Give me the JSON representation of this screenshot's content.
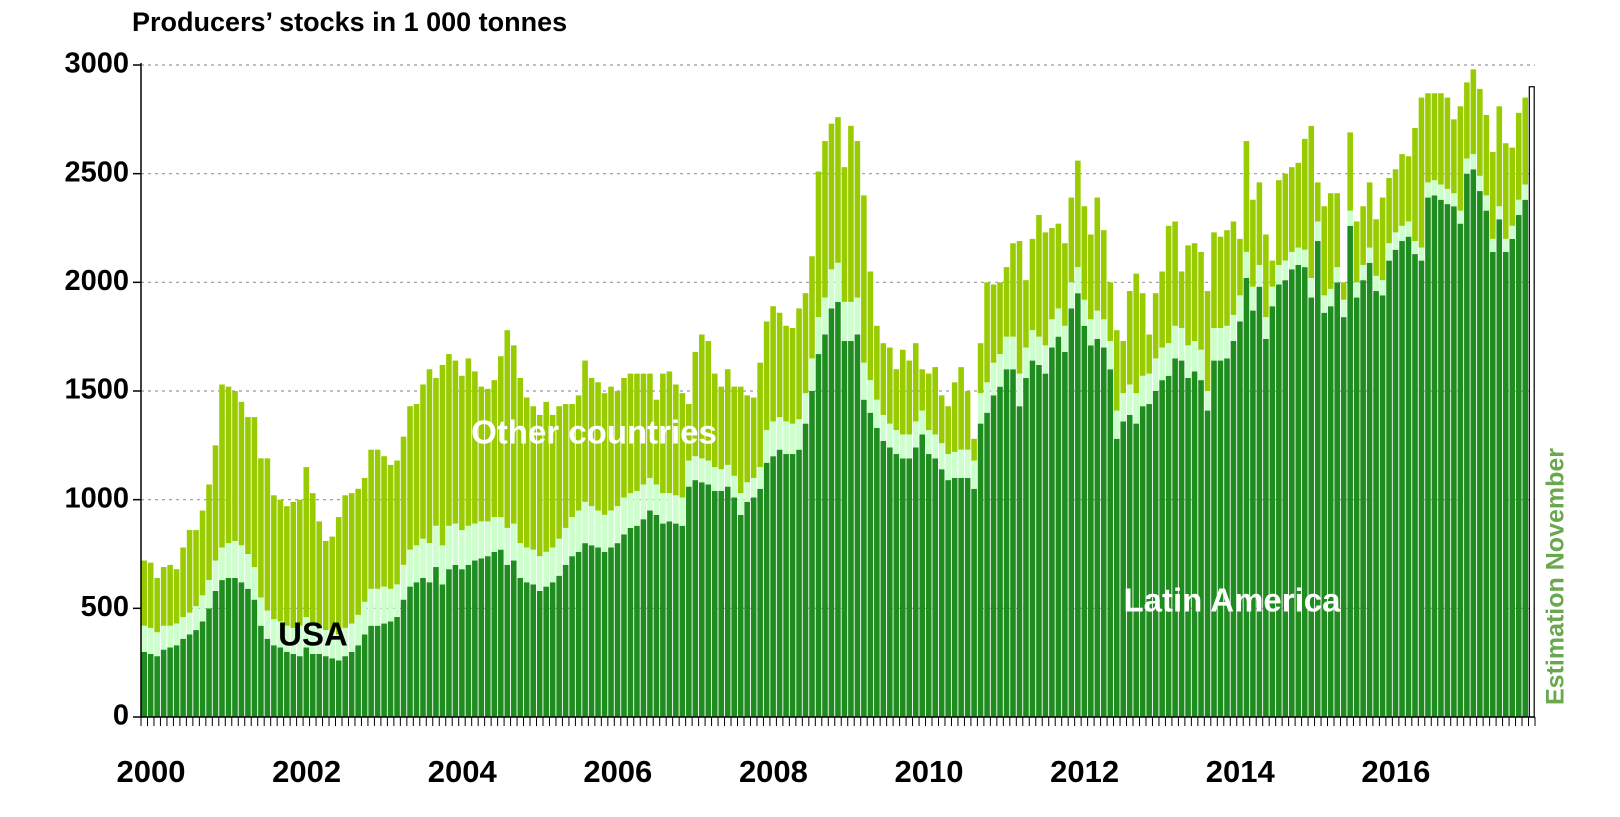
{
  "chart_data": {
    "type": "stacked-bar",
    "title": "Producers’ stocks in 1 000 tonnes",
    "categories": [
      "2000",
      null,
      null,
      null,
      null,
      null,
      null,
      null,
      null,
      null,
      null,
      null,
      null,
      null,
      null,
      null,
      null,
      null,
      null,
      null,
      null,
      null,
      null,
      null,
      "2002",
      null,
      null,
      null,
      null,
      null,
      null,
      null,
      null,
      null,
      null,
      null,
      null,
      null,
      null,
      null,
      null,
      null,
      null,
      null,
      null,
      null,
      null,
      null,
      "2004",
      null,
      null,
      null,
      null,
      null,
      null,
      null,
      null,
      null,
      null,
      null,
      null,
      null,
      null,
      null,
      null,
      null,
      null,
      null,
      null,
      null,
      null,
      null,
      "2006",
      null,
      null,
      null,
      null,
      null,
      null,
      null,
      null,
      null,
      null,
      null,
      null,
      null,
      null,
      null,
      null,
      null,
      null,
      null,
      null,
      null,
      null,
      null,
      "2008",
      null,
      null,
      null,
      null,
      null,
      null,
      null,
      null,
      null,
      null,
      null,
      null,
      null,
      null,
      null,
      null,
      null,
      null,
      null,
      null,
      null,
      null,
      null,
      "2010",
      null,
      null,
      null,
      null,
      null,
      null,
      null,
      null,
      null,
      null,
      null,
      null,
      null,
      null,
      null,
      null,
      null,
      null,
      null,
      null,
      null,
      null,
      null,
      "2012",
      null,
      null,
      null,
      null,
      null,
      null,
      null,
      null,
      null,
      null,
      null,
      null,
      null,
      null,
      null,
      null,
      null,
      null,
      null,
      null,
      null,
      null,
      null,
      "2014",
      null,
      null,
      null,
      null,
      null,
      null,
      null,
      null,
      null,
      null,
      null,
      null,
      null,
      null,
      null,
      null,
      null,
      null,
      null,
      null,
      null,
      null,
      null,
      "2016",
      null,
      null,
      null,
      null,
      null,
      null,
      null,
      null,
      null,
      null,
      null,
      null,
      null,
      null,
      null,
      null,
      null,
      null,
      null,
      null,
      null,
      null
    ],
    "series": [
      {
        "name": "Latin America",
        "color": "#1e8c1e",
        "label_color": "#ffffff",
        "values": [
          300,
          290,
          280,
          310,
          320,
          330,
          360,
          380,
          400,
          440,
          500,
          580,
          630,
          640,
          640,
          620,
          590,
          540,
          420,
          360,
          330,
          320,
          300,
          290,
          280,
          320,
          290,
          290,
          280,
          270,
          260,
          280,
          300,
          330,
          380,
          420,
          420,
          430,
          440,
          460,
          540,
          600,
          620,
          640,
          620,
          690,
          610,
          680,
          700,
          680,
          700,
          720,
          730,
          740,
          760,
          770,
          700,
          720,
          640,
          620,
          610,
          580,
          600,
          620,
          650,
          700,
          740,
          760,
          800,
          790,
          780,
          760,
          780,
          800,
          840,
          870,
          880,
          910,
          950,
          930,
          890,
          900,
          890,
          880,
          1060,
          1090,
          1080,
          1070,
          1040,
          1040,
          1060,
          1010,
          930,
          990,
          1010,
          1050,
          1170,
          1200,
          1230,
          1210,
          1210,
          1230,
          1350,
          1500,
          1670,
          1760,
          1880,
          1910,
          1730,
          1730,
          1760,
          1460,
          1400,
          1330,
          1270,
          1240,
          1210,
          1190,
          1190,
          1240,
          1300,
          1210,
          1190,
          1140,
          1090,
          1100,
          1100,
          1100,
          1050,
          1350,
          1400,
          1480,
          1520,
          1600,
          1600,
          1430,
          1560,
          1640,
          1620,
          1580,
          1700,
          1750,
          1680,
          1880,
          1950,
          1800,
          1710,
          1740,
          1700,
          1600,
          1280,
          1360,
          1390,
          1350,
          1430,
          1440,
          1500,
          1550,
          1570,
          1650,
          1640,
          1560,
          1590,
          1550,
          1410,
          1640,
          1640,
          1650,
          1730,
          1820,
          2020,
          1870,
          1980,
          1740,
          1890,
          1990,
          2010,
          2060,
          2080,
          2070,
          1930,
          2190,
          1860,
          1890,
          2000,
          1840,
          2260,
          1930,
          2010,
          2090,
          1960,
          1940,
          2100,
          2150,
          2190,
          2210,
          2130,
          2100,
          2390,
          2400,
          2380,
          2360,
          2350,
          2270,
          2500,
          2520,
          2420,
          2330,
          2140,
          2290,
          2140,
          2200,
          2310,
          2380,
          null
        ]
      },
      {
        "name": "USA",
        "color": "#ccffcc",
        "label_color": "#000000",
        "values": [
          120,
          120,
          110,
          110,
          100,
          100,
          100,
          100,
          110,
          120,
          130,
          140,
          150,
          160,
          170,
          170,
          160,
          150,
          130,
          130,
          120,
          120,
          120,
          120,
          140,
          140,
          130,
          120,
          120,
          120,
          120,
          130,
          130,
          140,
          150,
          170,
          170,
          170,
          150,
          150,
          160,
          170,
          170,
          180,
          180,
          190,
          180,
          200,
          190,
          180,
          180,
          170,
          170,
          160,
          160,
          150,
          170,
          170,
          160,
          160,
          160,
          160,
          160,
          160,
          170,
          170,
          180,
          190,
          190,
          180,
          170,
          170,
          170,
          170,
          170,
          160,
          160,
          160,
          150,
          140,
          140,
          130,
          130,
          130,
          120,
          110,
          110,
          110,
          110,
          100,
          100,
          100,
          100,
          90,
          90,
          100,
          150,
          160,
          150,
          150,
          140,
          140,
          140,
          150,
          170,
          170,
          180,
          180,
          180,
          180,
          170,
          170,
          150,
          130,
          120,
          110,
          110,
          110,
          110,
          120,
          110,
          110,
          110,
          120,
          120,
          120,
          130,
          130,
          130,
          140,
          140,
          150,
          150,
          150,
          150,
          150,
          140,
          140,
          130,
          130,
          130,
          130,
          120,
          120,
          120,
          120,
          120,
          130,
          130,
          130,
          130,
          130,
          140,
          140,
          140,
          140,
          150,
          150,
          150,
          150,
          150,
          150,
          140,
          140,
          90,
          150,
          150,
          150,
          120,
          120,
          120,
          110,
          100,
          100,
          90,
          90,
          90,
          80,
          80,
          80,
          90,
          90,
          80,
          80,
          70,
          80,
          70,
          70,
          70,
          70,
          70,
          70,
          80,
          80,
          70,
          70,
          60,
          60,
          70,
          70,
          70,
          70,
          60,
          60,
          70,
          70,
          70,
          70,
          60,
          60,
          60,
          60,
          70,
          70,
          null
        ]
      },
      {
        "name": "Other countries",
        "color": "#99cc00",
        "label_color": "#ffffff",
        "values": [
          300,
          300,
          250,
          270,
          280,
          250,
          320,
          380,
          350,
          390,
          440,
          530,
          750,
          720,
          690,
          660,
          630,
          690,
          640,
          700,
          570,
          560,
          550,
          580,
          580,
          690,
          610,
          490,
          410,
          440,
          540,
          610,
          600,
          580,
          570,
          640,
          640,
          600,
          570,
          570,
          590,
          660,
          650,
          710,
          800,
          680,
          830,
          790,
          750,
          710,
          770,
          700,
          620,
          610,
          630,
          740,
          910,
          820,
          760,
          690,
          660,
          650,
          690,
          610,
          610,
          570,
          520,
          530,
          650,
          590,
          590,
          560,
          570,
          530,
          550,
          550,
          540,
          510,
          480,
          390,
          550,
          560,
          510,
          480,
          260,
          480,
          570,
          550,
          430,
          380,
          440,
          410,
          490,
          400,
          370,
          480,
          500,
          530,
          480,
          440,
          440,
          510,
          460,
          470,
          670,
          720,
          670,
          670,
          620,
          810,
          720,
          770,
          500,
          340,
          330,
          350,
          280,
          390,
          340,
          360,
          190,
          260,
          310,
          220,
          220,
          320,
          380,
          270,
          100,
          230,
          460,
          360,
          330,
          320,
          430,
          610,
          310,
          420,
          560,
          520,
          420,
          390,
          380,
          390,
          490,
          430,
          390,
          520,
          410,
          270,
          370,
          240,
          430,
          550,
          380,
          180,
          300,
          350,
          540,
          480,
          260,
          460,
          450,
          450,
          460,
          440,
          420,
          440,
          430,
          260,
          510,
          400,
          380,
          380,
          120,
          390,
          400,
          390,
          390,
          510,
          700,
          180,
          410,
          440,
          340,
          80,
          360,
          280,
          270,
          300,
          260,
          380,
          300,
          290,
          330,
          300,
          520,
          690,
          410,
          400,
          420,
          420,
          340,
          480,
          350,
          390,
          400,
          370,
          400,
          460,
          440,
          360,
          400,
          400,
          null
        ]
      }
    ],
    "estimate": {
      "label": "Estimation November",
      "value": 2900,
      "color": "#6aa84f"
    },
    "ylim": [
      0,
      3000
    ],
    "yticks": [
      0,
      500,
      1000,
      1500,
      2000,
      2500,
      3000
    ],
    "grid": true
  }
}
